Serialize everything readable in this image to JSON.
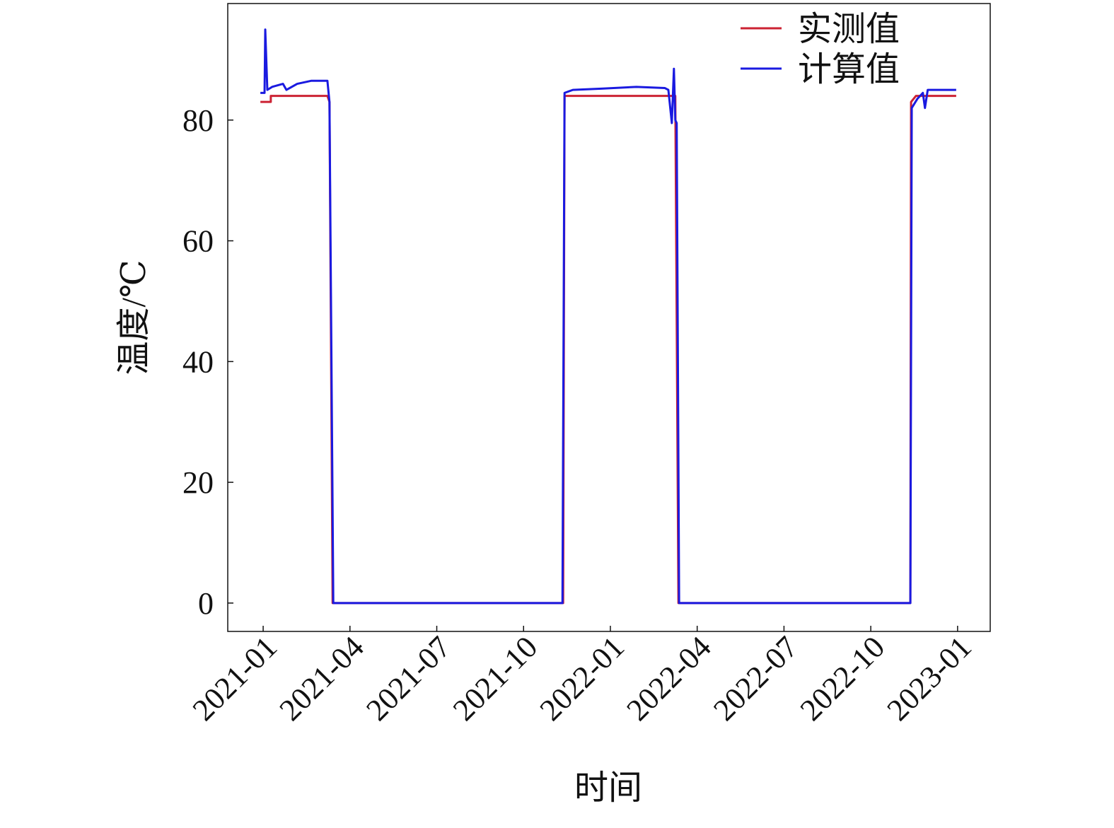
{
  "chart_data": {
    "type": "line",
    "x_label": "时间",
    "y_label": "温度/℃",
    "xlim": [
      2020.898,
      2023.094
    ],
    "xticks": [
      {
        "value": 2021.0,
        "label": "2021-01"
      },
      {
        "value": 2021.25,
        "label": "2021-04"
      },
      {
        "value": 2021.5,
        "label": "2021-07"
      },
      {
        "value": 2021.75,
        "label": "2021-10"
      },
      {
        "value": 2022.0,
        "label": "2022-01"
      },
      {
        "value": 2022.25,
        "label": "2022-04"
      },
      {
        "value": 2022.5,
        "label": "2022-07"
      },
      {
        "value": 2022.75,
        "label": "2022-10"
      },
      {
        "value": 2023.0,
        "label": "2023-01"
      }
    ],
    "ylim": [
      -4.7,
      99.3
    ],
    "yticks": [
      0,
      20,
      40,
      60,
      80
    ],
    "legend": "upper right",
    "series": [
      {
        "name": "实测值",
        "color": "#cc2233",
        "x": [
          2020.992,
          2021.022,
          2021.022,
          2021.185,
          2021.191,
          2021.2,
          2021.864,
          2021.868,
          2022.187,
          2022.196,
          2022.864,
          2022.866,
          2022.88,
          2022.996
        ],
        "values": [
          83,
          83,
          84,
          84,
          83,
          0,
          0,
          84,
          84,
          0,
          0,
          83,
          84,
          84
        ]
      },
      {
        "name": "计算值",
        "color": "#1a1ae0",
        "x": [
          2020.992,
          2021.004,
          2021.006,
          2021.012,
          2021.026,
          2021.057,
          2021.067,
          2021.098,
          2021.138,
          2021.185,
          2021.191,
          2021.202,
          2021.862,
          2021.868,
          2021.892,
          2021.974,
          2022.075,
          2022.157,
          2022.167,
          2022.177,
          2022.183,
          2022.187,
          2022.191,
          2022.198,
          2022.864,
          2022.868,
          2022.884,
          2022.9,
          2022.906,
          2022.914,
          2022.951,
          2022.996
        ],
        "values": [
          84.5,
          84.5,
          95,
          85,
          85.5,
          86,
          85,
          86,
          86.5,
          86.5,
          83,
          0,
          0,
          84.5,
          85,
          85.2,
          85.5,
          85.3,
          85,
          79.5,
          88.5,
          80,
          79.5,
          0,
          0,
          82,
          83.5,
          84.5,
          82,
          85,
          85,
          85
        ]
      }
    ]
  }
}
